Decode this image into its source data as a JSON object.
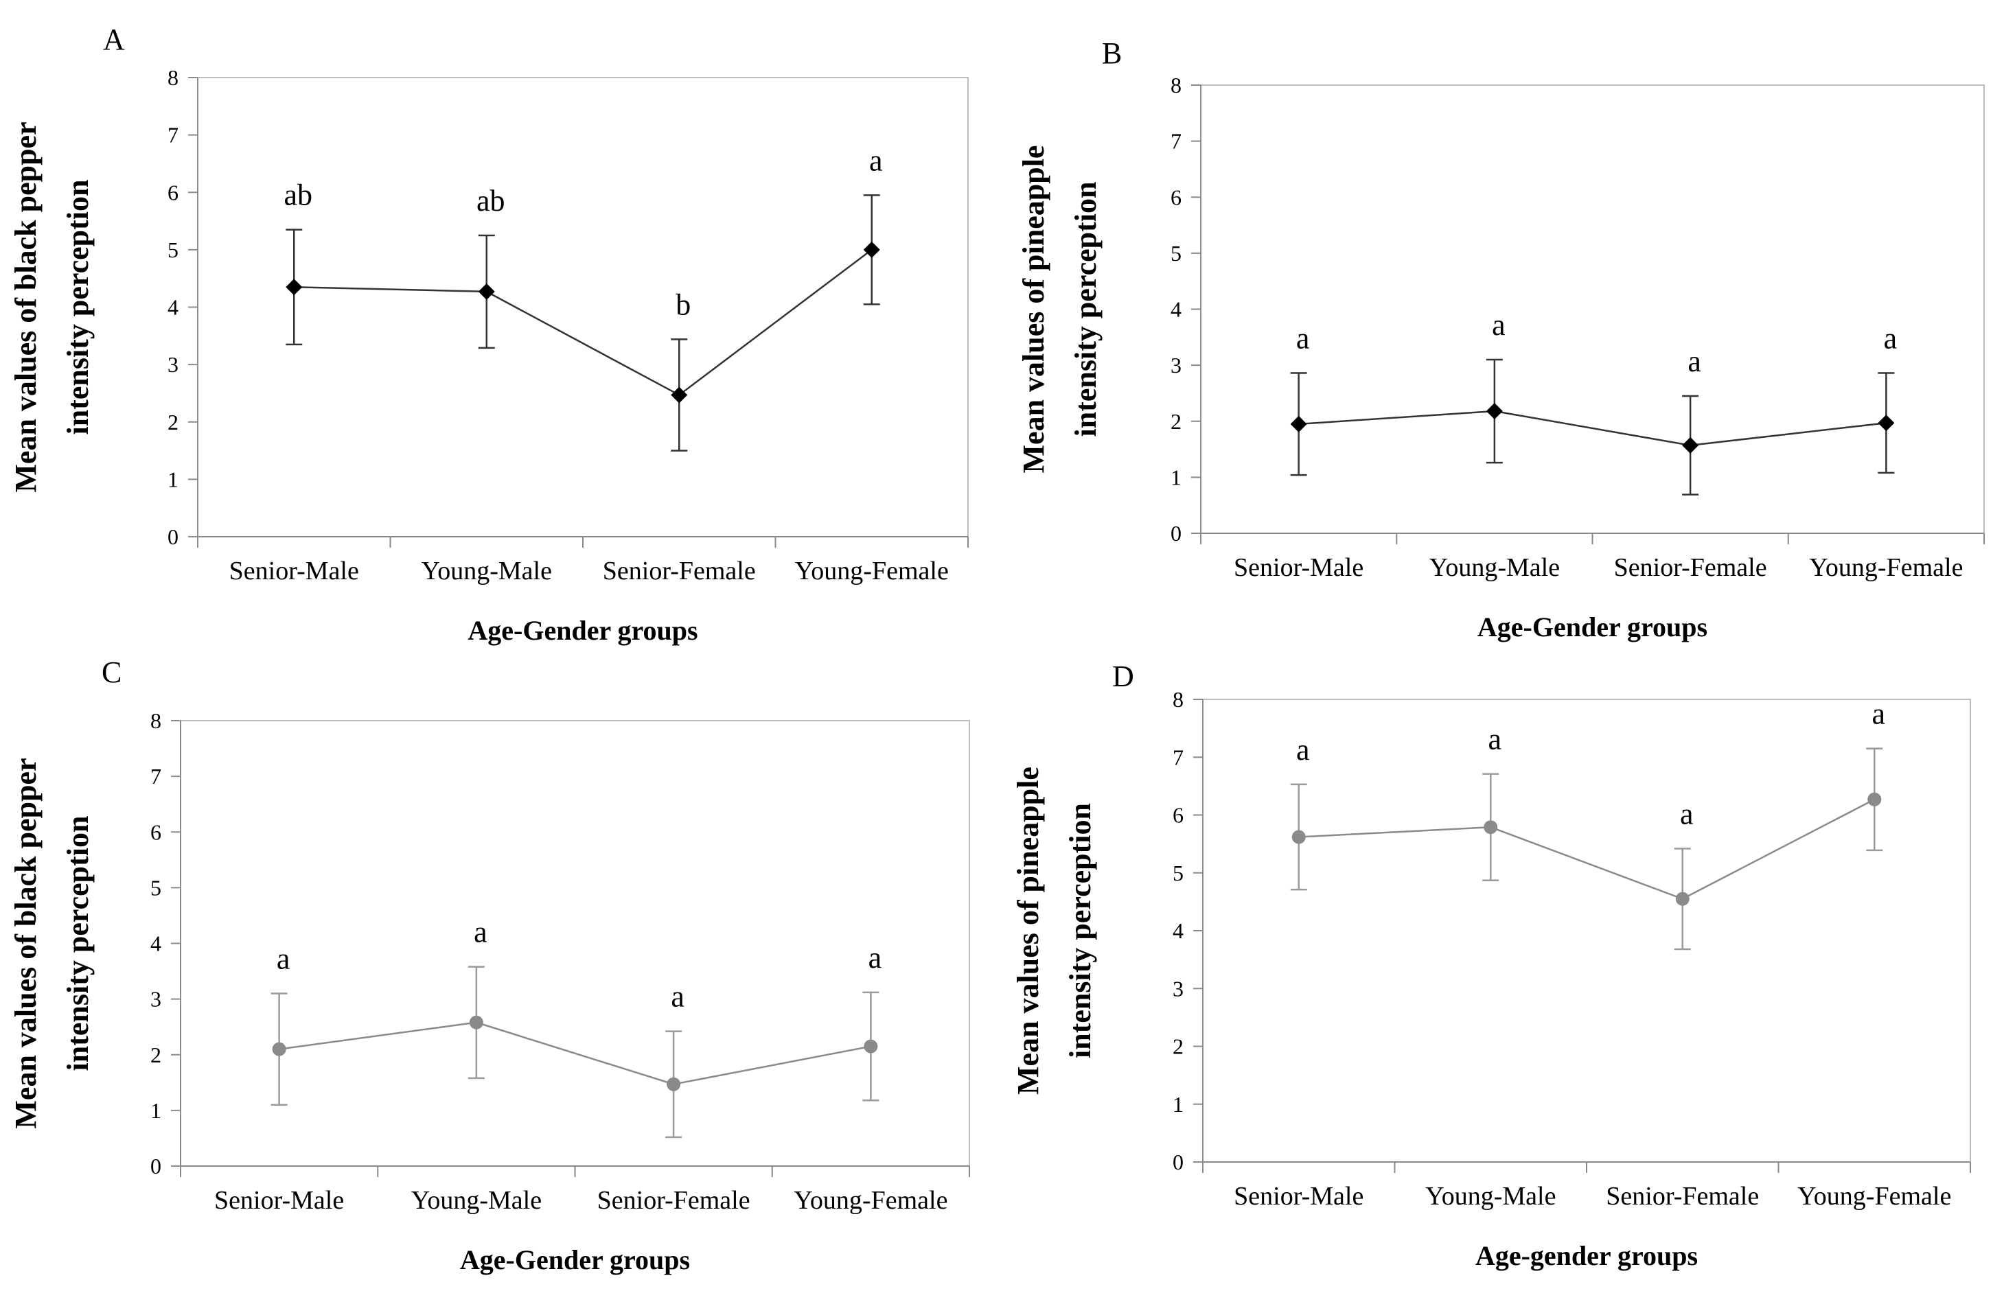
{
  "chart_data": [
    {
      "panel": "A",
      "type": "line",
      "marker": "diamond",
      "color": "#000000",
      "xlabel": "Age-Gender groups",
      "ylabel": [
        "Mean values of black pepper",
        "intensity perception"
      ],
      "ylim": [
        0,
        8
      ],
      "yticks": [
        "0",
        "1",
        "2",
        "3",
        "4",
        "5",
        "6",
        "7",
        "8"
      ],
      "categories": [
        "Senior-Male",
        "Young-Male",
        "Senior-Female",
        "Young-Female"
      ],
      "values": [
        4.35,
        4.27,
        2.47,
        5.0
      ],
      "error": [
        1.0,
        0.98,
        0.97,
        0.95
      ],
      "significance": [
        "ab",
        "ab",
        "b",
        "a"
      ],
      "grid": false
    },
    {
      "panel": "B",
      "type": "line",
      "marker": "diamond",
      "color": "#000000",
      "xlabel": "Age-Gender groups",
      "ylabel": [
        "Mean values of pineapple",
        "intensity perception"
      ],
      "ylim": [
        0,
        8
      ],
      "yticks": [
        "0",
        "1",
        "2",
        "3",
        "4",
        "5",
        "6",
        "7",
        "8"
      ],
      "categories": [
        "Senior-Male",
        "Young-Male",
        "Senior-Female",
        "Young-Female"
      ],
      "values": [
        1.95,
        2.18,
        1.57,
        1.97
      ],
      "error": [
        0.91,
        0.92,
        0.88,
        0.89
      ],
      "significance": [
        "a",
        "a",
        "a",
        "a"
      ],
      "grid": false
    },
    {
      "panel": "C",
      "type": "line",
      "marker": "circle",
      "color": "#808080",
      "xlabel": "Age-Gender groups",
      "ylabel": [
        "Mean values of black pepper",
        "intensity perception"
      ],
      "ylim": [
        0,
        8
      ],
      "yticks": [
        "0",
        "1",
        "2",
        "3",
        "4",
        "5",
        "6",
        "7",
        "8"
      ],
      "categories": [
        "Senior-Male",
        "Young-Male",
        "Senior-Female",
        "Young-Female"
      ],
      "values": [
        2.1,
        2.58,
        1.47,
        2.15
      ],
      "error": [
        1.0,
        1.0,
        0.95,
        0.97
      ],
      "significance": [
        "a",
        "a",
        "a",
        "a"
      ],
      "grid": false
    },
    {
      "panel": "D",
      "type": "line",
      "marker": "circle",
      "color": "#808080",
      "xlabel": "Age-gender groups",
      "ylabel": [
        "Mean values of pineapple",
        "intensity perception"
      ],
      "ylim": [
        0,
        8
      ],
      "yticks": [
        "0",
        "1",
        "2",
        "3",
        "4",
        "5",
        "6",
        "7",
        "8"
      ],
      "categories": [
        "Senior-Male",
        "Young-Male",
        "Senior-Female",
        "Young-Female"
      ],
      "values": [
        5.62,
        5.79,
        4.55,
        6.27
      ],
      "error": [
        0.91,
        0.92,
        0.87,
        0.88
      ],
      "significance": [
        "a",
        "a",
        "a",
        "a"
      ],
      "grid": false
    }
  ]
}
